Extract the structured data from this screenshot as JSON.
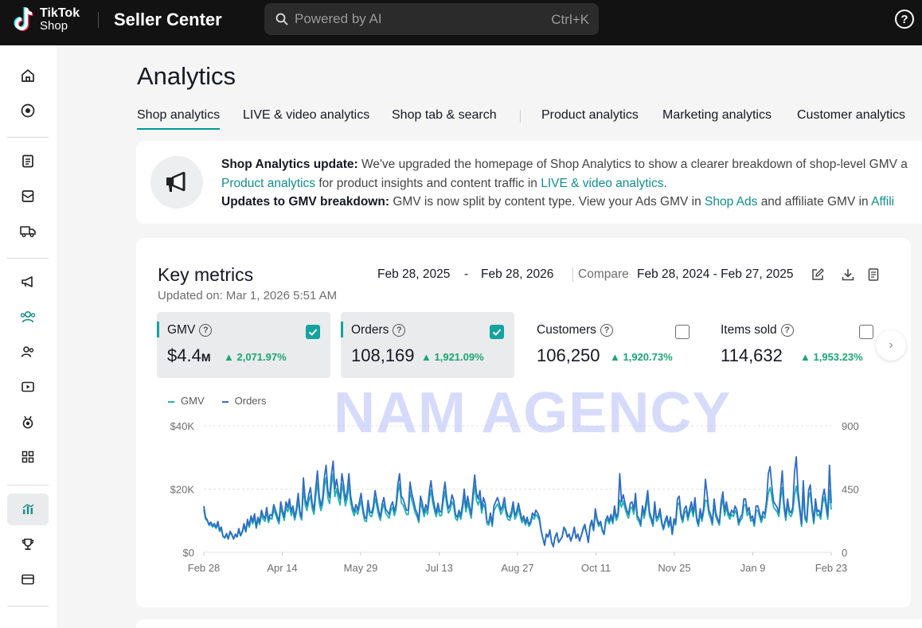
{
  "topbar": {
    "logo_line1": "TikTok",
    "logo_line2": "Shop",
    "title": "Seller Center",
    "search_placeholder": "Powered by AI",
    "search_shortcut": "Ctrl+K",
    "help_glyph": "?"
  },
  "sidebar": {
    "items": [
      {
        "icon": "home-icon"
      },
      {
        "icon": "plus-circle-icon"
      },
      {
        "icon": "clipboard-icon"
      },
      {
        "icon": "inbox-icon"
      },
      {
        "icon": "truck-icon"
      },
      {
        "icon": "megaphone-icon"
      },
      {
        "icon": "users-icon"
      },
      {
        "icon": "user-group-icon"
      },
      {
        "icon": "video-icon"
      },
      {
        "icon": "badge-icon"
      },
      {
        "icon": "apps-grid-icon"
      },
      {
        "icon": "analytics-icon",
        "active": true
      },
      {
        "icon": "trophy-icon"
      },
      {
        "icon": "wallet-icon"
      }
    ]
  },
  "page": {
    "title": "Analytics",
    "tabs": [
      {
        "label": "Shop analytics",
        "active": true
      },
      {
        "label": "LIVE & video analytics"
      },
      {
        "label": "Shop tab & search"
      },
      {
        "label": "Product analytics"
      },
      {
        "label": "Marketing analytics"
      },
      {
        "label": "Customer analytics"
      }
    ]
  },
  "notice": {
    "line1_label": "Shop Analytics update:",
    "line1_text": "We've upgraded the homepage of Shop Analytics to show a clearer breakdown of shop-level GMV a",
    "line2_link1": "Product analytics",
    "line2_text": "for product insights and content traffic in",
    "line2_link2": "LIVE & video analytics",
    "line2_end": ".",
    "line3_label": "Updates to GMV breakdown:",
    "line3_text": "GMV is now split by content type. View your Ads GMV in",
    "line3_link1": "Shop Ads",
    "line3_text2": "and affiliate GMV in",
    "line3_link2": "Affili"
  },
  "key_metrics": {
    "title": "Key metrics",
    "updated": "Updated on: Mar 1, 2026 5:51 AM",
    "range_start": "Feb 28, 2025",
    "range_dash": "-",
    "range_end": "Feb 28, 2026",
    "compare_label": "Compare",
    "compare_range": "Feb 28, 2024 - Feb 27, 2025",
    "metrics": [
      {
        "label": "GMV",
        "currency": "$",
        "value": "4.4",
        "unit": "M",
        "delta": "2,071.97%",
        "selected": true
      },
      {
        "label": "Orders",
        "value": "108,169",
        "delta": "1,921.09%",
        "selected": true
      },
      {
        "label": "Customers",
        "value": "106,250",
        "delta": "1,920.73%",
        "selected": false
      },
      {
        "label": "Items sold",
        "value": "114,632",
        "delta": "1,953.23%",
        "selected": false
      }
    ]
  },
  "watermark": "NAM AGENCY",
  "colors": {
    "accent": "#14a39e",
    "gmv_line": "#1fb5ae",
    "orders_line": "#2f6bc6",
    "positive": "#1ba672"
  },
  "chart_data": {
    "type": "line",
    "legend": [
      "GMV",
      "Orders"
    ],
    "x_ticks": [
      "Feb 28",
      "Apr 14",
      "May 29",
      "Jul 13",
      "Aug 27",
      "Oct 11",
      "Nov 25",
      "Jan 9",
      "Feb 23"
    ],
    "y_left_ticks": [
      "$0",
      "$20K",
      "$40K"
    ],
    "y_right_ticks": [
      "0",
      "450",
      "900"
    ],
    "y_left_range": [
      0,
      40000
    ],
    "y_right_range": [
      0,
      900
    ],
    "series": [
      {
        "name": "Orders",
        "values": [
          330,
          250,
          230,
          200,
          215,
          190,
          205,
          175,
          220,
          160,
          180,
          115,
          105,
          135,
          95,
          150,
          130,
          95,
          130,
          110,
          170,
          120,
          150,
          205,
          150,
          235,
          190,
          260,
          220,
          275,
          180,
          250,
          215,
          300,
          260,
          240,
          320,
          230,
          270,
          260,
          340,
          300,
          260,
          220,
          360,
          300,
          250,
          360,
          320,
          380,
          290,
          330,
          250,
          310,
          420,
          290,
          250,
          530,
          380,
          330,
          410,
          460,
          350,
          300,
          450,
          580,
          400,
          330,
          390,
          540,
          620,
          440,
          390,
          550,
          650,
          450,
          520,
          430,
          380,
          560,
          480,
          370,
          430,
          560,
          400,
          330,
          290,
          340,
          300,
          360,
          420,
          320,
          250,
          240,
          370,
          290,
          280,
          330,
          440,
          370,
          300,
          250,
          340,
          390,
          310,
          290,
          270,
          330,
          360,
          290,
          340,
          480,
          560,
          400,
          380,
          340,
          300,
          300,
          500,
          420,
          370,
          310,
          280,
          230,
          400,
          350,
          280,
          340,
          300,
          430,
          510,
          400,
          330,
          280,
          350,
          290,
          290,
          410,
          500,
          380,
          310,
          340,
          410,
          370,
          270,
          250,
          300,
          260,
          340,
          450,
          320,
          400,
          330,
          270,
          420,
          550,
          420,
          380,
          440,
          310,
          390,
          350,
          220,
          210,
          280,
          200,
          330,
          360,
          390,
          350,
          300,
          330,
          390,
          300,
          260,
          250,
          290,
          360,
          260,
          290,
          350,
          290,
          230,
          260,
          210,
          250,
          200,
          220,
          280,
          260,
          300,
          280,
          250,
          160,
          100,
          50,
          130,
          110,
          160,
          70,
          40,
          110,
          140,
          70,
          90,
          110,
          180,
          160,
          110,
          130,
          80,
          120,
          180,
          100,
          130,
          80,
          120,
          170,
          200,
          140,
          70,
          190,
          230,
          160,
          310,
          240,
          200,
          220,
          160,
          130,
          230,
          260,
          220,
          270,
          220,
          330,
          250,
          280,
          560,
          360,
          410,
          350,
          300,
          270,
          350,
          360,
          300,
          420,
          260,
          240,
          200,
          330,
          270,
          350,
          440,
          290,
          250,
          200,
          360,
          240,
          260,
          310,
          220,
          170,
          230,
          260,
          190,
          250,
          130,
          240,
          210,
          380,
          400,
          280,
          230,
          310,
          330,
          250,
          310,
          360,
          280,
          390,
          250,
          200,
          310,
          240,
          320,
          520,
          410,
          300,
          270,
          210,
          380,
          280,
          240,
          210,
          360,
          430,
          290,
          360,
          290,
          260,
          300,
          280,
          330,
          300,
          210,
          250,
          270,
          380,
          380,
          290,
          320,
          240,
          260,
          200,
          330,
          330,
          280,
          230,
          290,
          270,
          370,
          560,
          610,
          470,
          360,
          340,
          320,
          280,
          430,
          580,
          350,
          250,
          380,
          300,
          280,
          320,
          570,
          680,
          440,
          320,
          200,
          510,
          260,
          230,
          440,
          480,
          330,
          220,
          380,
          290,
          300,
          260,
          390,
          450,
          360,
          260,
          620,
          350
        ]
      },
      {
        "name": "GMV",
        "values": [
          13500,
          10500,
          10000,
          8500,
          9000,
          8000,
          8400,
          7600,
          9000,
          6600,
          7300,
          5000,
          4500,
          5500,
          4200,
          6300,
          5500,
          4200,
          5500,
          4800,
          7000,
          5200,
          6300,
          8400,
          6400,
          9500,
          7900,
          10500,
          9000,
          11000,
          7600,
          10200,
          8800,
          12000,
          10500,
          9800,
          12800,
          9400,
          11000,
          10500,
          13600,
          12100,
          10500,
          9000,
          14200,
          12000,
          10100,
          14400,
          12800,
          15000,
          11600,
          13200,
          10200,
          12600,
          16500,
          11700,
          10200,
          20500,
          15000,
          13200,
          16100,
          17900,
          13900,
          12000,
          17500,
          22200,
          15700,
          13200,
          15300,
          21000,
          23600,
          17200,
          15400,
          21200,
          24800,
          17600,
          20100,
          16800,
          15000,
          21600,
          18700,
          14700,
          17000,
          21600,
          15700,
          13200,
          11600,
          13500,
          12000,
          14300,
          16500,
          12800,
          10100,
          9700,
          14600,
          11600,
          11300,
          13200,
          17100,
          14600,
          11900,
          10100,
          13500,
          15300,
          12400,
          11600,
          10800,
          13200,
          14300,
          11600,
          13500,
          18700,
          21600,
          15700,
          15000,
          13500,
          12000,
          12000,
          19300,
          16500,
          14600,
          12400,
          11300,
          9400,
          15700,
          13900,
          11300,
          13500,
          12000,
          16800,
          19700,
          15700,
          13200,
          11300,
          13900,
          11600,
          11600,
          16100,
          19300,
          15000,
          12400,
          13500,
          16100,
          14600,
          10800,
          10100,
          12000,
          10500,
          13500,
          17500,
          12800,
          15700,
          13200,
          10800,
          16500,
          21200,
          16500,
          15000,
          17200,
          12400,
          15300,
          13900,
          9000,
          8600,
          11300,
          8200,
          13200,
          14300,
          15300,
          13900,
          12000,
          13200,
          15300,
          12000,
          10500,
          10100,
          11600,
          14300,
          10500,
          11600,
          13900,
          11600,
          9400,
          10500,
          8600,
          10100,
          8200,
          9000,
          11300,
          10500,
          12000,
          11300,
          10100,
          6800,
          4500,
          2600,
          5600,
          4800,
          6800,
          3300,
          2200,
          4800,
          6000,
          3300,
          4100,
          4800,
          7500,
          6800,
          4800,
          5600,
          3700,
          5200,
          7500,
          4500,
          5600,
          3700,
          5200,
          7100,
          8200,
          6000,
          3300,
          7900,
          9400,
          6800,
          12400,
          9800,
          8200,
          9000,
          6800,
          5600,
          9400,
          10500,
          9000,
          11000,
          9000,
          13200,
          10100,
          11300,
          16500,
          14300,
          16100,
          13900,
          12000,
          10800,
          13900,
          14300,
          12000,
          16500,
          10500,
          9800,
          8200,
          13200,
          10800,
          13900,
          17200,
          11600,
          10100,
          8200,
          14300,
          9800,
          10500,
          12400,
          9000,
          7100,
          9400,
          10500,
          7900,
          10100,
          5600,
          9800,
          8600,
          15000,
          15700,
          11300,
          9400,
          12400,
          13200,
          10100,
          12400,
          14300,
          11300,
          15300,
          10100,
          8200,
          12400,
          9800,
          12800,
          16500,
          16100,
          12000,
          10800,
          8600,
          15000,
          11300,
          9800,
          8600,
          14300,
          16800,
          11600,
          14300,
          11600,
          10500,
          12000,
          11300,
          13200,
          12000,
          8600,
          10100,
          10800,
          15000,
          15000,
          11600,
          12800,
          9800,
          10500,
          8200,
          13200,
          13200,
          11300,
          9400,
          11600,
          10800,
          14600,
          18700,
          20500,
          17500,
          14300,
          13500,
          12800,
          11300,
          16800,
          20500,
          13900,
          10100,
          15000,
          12000,
          11300,
          12800,
          18000,
          21000,
          17200,
          12800,
          8200,
          17900,
          10500,
          9400,
          17200,
          19000,
          13200,
          9000,
          15000,
          11600,
          12000,
          10500,
          15300,
          17500,
          14300,
          10500,
          19700,
          13500
        ]
      }
    ]
  }
}
